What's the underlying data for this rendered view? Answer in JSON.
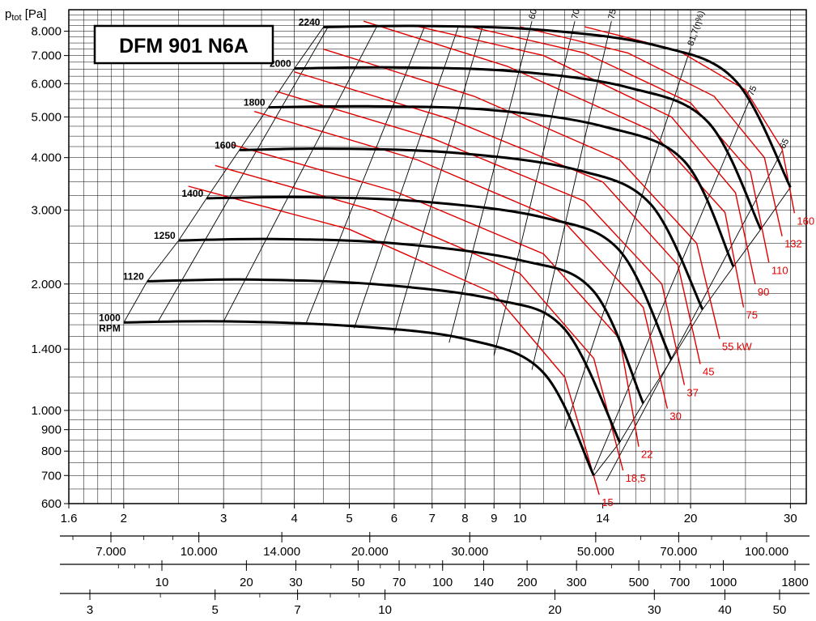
{
  "chart_data": {
    "type": "line",
    "title": "DFM 901 N6A",
    "ylabel": "p",
    "ylabel_sub": "tot",
    "ylabel_unit": " [Pa]",
    "y_scale": "log",
    "ylim": [
      600,
      9000
    ],
    "y_ticks": [
      {
        "value": 600,
        "label": "600"
      },
      {
        "value": 700,
        "label": "700"
      },
      {
        "value": 800,
        "label": "800"
      },
      {
        "value": 900,
        "label": "900"
      },
      {
        "value": 1000,
        "label": "1.000"
      },
      {
        "value": 1400,
        "label": "1.400"
      },
      {
        "value": 2000,
        "label": "2.000"
      },
      {
        "value": 3000,
        "label": "3.000"
      },
      {
        "value": 4000,
        "label": "4.000"
      },
      {
        "value": 5000,
        "label": "5.000"
      },
      {
        "value": 6000,
        "label": "6.000"
      },
      {
        "value": 7000,
        "label": "7.000"
      },
      {
        "value": 8000,
        "label": "8.000"
      }
    ],
    "x_scale": "log",
    "xlim": [
      1.6,
      32
    ],
    "x_ticks": [
      {
        "value": 1.6,
        "label": "1.6"
      },
      {
        "value": 2,
        "label": "2"
      },
      {
        "value": 3,
        "label": "3"
      },
      {
        "value": 4,
        "label": "4"
      },
      {
        "value": 5,
        "label": "5"
      },
      {
        "value": 6,
        "label": "6"
      },
      {
        "value": 7,
        "label": "7"
      },
      {
        "value": 8,
        "label": "8"
      },
      {
        "value": 9,
        "label": "9"
      },
      {
        "value": 10,
        "label": "10"
      },
      {
        "value": 14,
        "label": "14"
      },
      {
        "value": 20,
        "label": "20"
      },
      {
        "value": 30,
        "label": "30"
      }
    ],
    "secondary_axes": [
      {
        "ticks": [
          {
            "value": 7000,
            "label": "7.000"
          },
          {
            "value": 10000,
            "label": "10.000"
          },
          {
            "value": 14000,
            "label": "14.000"
          },
          {
            "value": 20000,
            "label": "20.000"
          },
          {
            "value": 30000,
            "label": "30.000"
          },
          {
            "value": 50000,
            "label": "50.000"
          },
          {
            "value": 70000,
            "label": "70.000"
          },
          {
            "value": 100000,
            "label": "100.000"
          }
        ]
      },
      {
        "ticks": [
          {
            "value": 10,
            "label": "10"
          },
          {
            "value": 20,
            "label": "20"
          },
          {
            "value": 30,
            "label": "30"
          },
          {
            "value": 50,
            "label": "50"
          },
          {
            "value": 70,
            "label": "70"
          },
          {
            "value": 100,
            "label": "100"
          },
          {
            "value": 140,
            "label": "140"
          },
          {
            "value": 200,
            "label": "200"
          },
          {
            "value": 300,
            "label": "300"
          },
          {
            "value": 500,
            "label": "500"
          },
          {
            "value": 700,
            "label": "700"
          },
          {
            "value": 1000,
            "label": "1000"
          },
          {
            "value": 1800,
            "label": "1800"
          }
        ]
      },
      {
        "ticks": [
          {
            "value": 3,
            "label": "3"
          },
          {
            "value": 5,
            "label": "5"
          },
          {
            "value": 7,
            "label": "7"
          },
          {
            "value": 10,
            "label": "10"
          },
          {
            "value": 20,
            "label": "20"
          },
          {
            "value": 30,
            "label": "30"
          },
          {
            "value": 40,
            "label": "40"
          },
          {
            "value": 50,
            "label": "50"
          }
        ]
      }
    ],
    "series": [
      {
        "name": "1000",
        "points": [
          [
            2.0,
            1620
          ],
          [
            3.0,
            1630
          ],
          [
            5.0,
            1590
          ],
          [
            8.0,
            1480
          ],
          [
            11.0,
            1230
          ],
          [
            13.5,
            700
          ]
        ]
      },
      {
        "name": "1120",
        "points": [
          [
            2.2,
            2030
          ],
          [
            3.3,
            2050
          ],
          [
            5.5,
            2000
          ],
          [
            9.0,
            1840
          ],
          [
            12.0,
            1560
          ],
          [
            15.0,
            840
          ]
        ]
      },
      {
        "name": "1250",
        "points": [
          [
            2.5,
            2540
          ],
          [
            3.7,
            2560
          ],
          [
            6.0,
            2500
          ],
          [
            10.0,
            2280
          ],
          [
            13.5,
            1920
          ],
          [
            16.5,
            1040
          ]
        ]
      },
      {
        "name": "1400",
        "points": [
          [
            2.8,
            3200
          ],
          [
            4.2,
            3220
          ],
          [
            6.8,
            3140
          ],
          [
            11.0,
            2880
          ],
          [
            15.0,
            2400
          ],
          [
            18.5,
            1320
          ]
        ]
      },
      {
        "name": "1600",
        "points": [
          [
            3.2,
            4170
          ],
          [
            4.8,
            4200
          ],
          [
            7.8,
            4100
          ],
          [
            12.5,
            3750
          ],
          [
            17.0,
            3100
          ],
          [
            21.0,
            1740
          ]
        ]
      },
      {
        "name": "1800",
        "points": [
          [
            3.6,
            5270
          ],
          [
            5.4,
            5300
          ],
          [
            8.8,
            5200
          ],
          [
            14.0,
            4750
          ],
          [
            19.5,
            3920
          ],
          [
            23.8,
            2200
          ]
        ]
      },
      {
        "name": "2000",
        "points": [
          [
            4.0,
            6520
          ],
          [
            6.0,
            6560
          ],
          [
            9.8,
            6420
          ],
          [
            15.5,
            5880
          ],
          [
            21.5,
            4850
          ],
          [
            26.6,
            2700
          ]
        ]
      },
      {
        "name": "2240",
        "points": [
          [
            4.5,
            8180
          ],
          [
            6.7,
            8230
          ],
          [
            11.0,
            8050
          ],
          [
            17.5,
            7380
          ],
          [
            24.0,
            6100
          ],
          [
            30.0,
            3400
          ]
        ]
      }
    ],
    "series_labels": [
      {
        "text": "1000",
        "text2": "RPM"
      },
      {
        "text": "1120"
      },
      {
        "text": "1250"
      },
      {
        "text": "1400"
      },
      {
        "text": "1600"
      },
      {
        "text": "1800"
      },
      {
        "text": "2000"
      },
      {
        "text": "2240"
      }
    ],
    "power_lines": [
      {
        "label": "15",
        "points": [
          [
            2.6,
            3420
          ],
          [
            5.0,
            2700
          ],
          [
            9.0,
            1900
          ],
          [
            12.0,
            1200
          ],
          [
            13.8,
            630
          ]
        ]
      },
      {
        "label": "18,5",
        "points": [
          [
            2.9,
            3830
          ],
          [
            5.5,
            3000
          ],
          [
            10.0,
            2120
          ],
          [
            13.5,
            1330
          ],
          [
            15.2,
            720
          ]
        ]
      },
      {
        "label": "22",
        "points": [
          [
            3.1,
            4300
          ],
          [
            6.0,
            3330
          ],
          [
            11.0,
            2360
          ],
          [
            15.0,
            1480
          ],
          [
            16.2,
            820
          ]
        ]
      },
      {
        "label": "30",
        "points": [
          [
            3.4,
            5150
          ],
          [
            6.6,
            3950
          ],
          [
            12.0,
            2800
          ],
          [
            16.5,
            1760
          ],
          [
            18.2,
            1010
          ]
        ]
      },
      {
        "label": "37",
        "points": [
          [
            3.7,
            5760
          ],
          [
            7.0,
            4450
          ],
          [
            13.0,
            3150
          ],
          [
            17.8,
            2000
          ],
          [
            19.5,
            1150
          ]
        ]
      },
      {
        "label": "45",
        "points": [
          [
            4.0,
            6400
          ],
          [
            7.5,
            4950
          ],
          [
            14.0,
            3500
          ],
          [
            19.0,
            2220
          ],
          [
            20.8,
            1290
          ]
        ]
      },
      {
        "label": "55 kW",
        "points": [
          [
            4.5,
            7250
          ],
          [
            8.3,
            5600
          ],
          [
            15.0,
            3950
          ],
          [
            20.5,
            2500
          ],
          [
            22.5,
            1480
          ]
        ]
      },
      {
        "label": "75",
        "points": [
          [
            5.3,
            8450
          ],
          [
            9.5,
            6600
          ],
          [
            17.0,
            4650
          ],
          [
            23.0,
            2960
          ],
          [
            24.8,
            1760
          ]
        ]
      },
      {
        "label": "90",
        "points": [
          [
            6.5,
            8250
          ],
          [
            11.0,
            7000
          ],
          [
            18.5,
            5000
          ],
          [
            24.0,
            3300
          ],
          [
            26.0,
            2000
          ]
        ]
      },
      {
        "label": "110",
        "points": [
          [
            8.0,
            8250
          ],
          [
            13.0,
            7100
          ],
          [
            20.0,
            5400
          ],
          [
            25.5,
            3700
          ],
          [
            27.5,
            2250
          ]
        ]
      },
      {
        "label": "132",
        "points": [
          [
            10.0,
            8200
          ],
          [
            15.5,
            7100
          ],
          [
            22.0,
            5600
          ],
          [
            27.0,
            4000
          ],
          [
            29.0,
            2600
          ]
        ]
      },
      {
        "label": "160",
        "points": [
          [
            13.0,
            8200
          ],
          [
            19.0,
            7200
          ],
          [
            25.0,
            5800
          ],
          [
            29.0,
            4200
          ],
          [
            30.5,
            2950
          ]
        ]
      }
    ],
    "efficiency_lines": [
      {
        "label": "",
        "points": [
          [
            2.3,
            1630
          ],
          [
            4.6,
            8250
          ]
        ]
      },
      {
        "label": "",
        "points": [
          [
            3.0,
            1630
          ],
          [
            5.6,
            8250
          ]
        ]
      },
      {
        "label": "",
        "points": [
          [
            4.2,
            1620
          ],
          [
            6.8,
            8250
          ]
        ]
      },
      {
        "label": "",
        "points": [
          [
            5.1,
            1570
          ],
          [
            7.8,
            8250
          ]
        ]
      },
      {
        "label": "",
        "points": [
          [
            6.0,
            1520
          ],
          [
            8.6,
            8250
          ]
        ]
      },
      {
        "label": "60",
        "points": [
          [
            7.5,
            1450
          ],
          [
            10.5,
            8450
          ]
        ]
      },
      {
        "label": "70",
        "points": [
          [
            9.0,
            1350
          ],
          [
            12.5,
            8450
          ]
        ]
      },
      {
        "label": "75",
        "points": [
          [
            10.5,
            1250
          ],
          [
            14.5,
            8450
          ]
        ]
      },
      {
        "label": "81,7(η%)",
        "points": [
          [
            12.0,
            900
          ],
          [
            20.0,
            7300
          ]
        ]
      },
      {
        "label": "75",
        "points": [
          [
            13.5,
            720
          ],
          [
            25.5,
            5550
          ]
        ]
      },
      {
        "label": "65",
        "points": [
          [
            14.2,
            680
          ],
          [
            29.0,
            4150
          ]
        ]
      }
    ]
  }
}
